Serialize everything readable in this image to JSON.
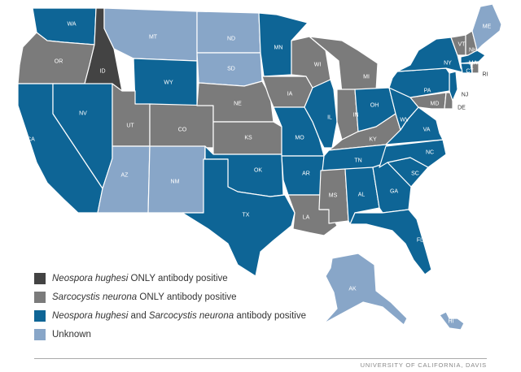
{
  "colors": {
    "neospora_only": "#434343",
    "sarcocystis_only": "#7b7b7b",
    "both": "#0e6596",
    "unknown": "#88a6c8",
    "rule": "#aaaaaa",
    "credit": "#888888"
  },
  "legend": {
    "item1": {
      "part1": "Neospora hughesi",
      "part2": " ONLY antibody positive"
    },
    "item2": {
      "part1": "Sarcocystis neurona",
      "part2": " ONLY antibody positive"
    },
    "item3": {
      "part1": "Neospora hughesi",
      "part2": " and ",
      "part3": "Sarcocystis neurona",
      "part4": " antibody positive"
    },
    "item4": {
      "label": "Unknown"
    }
  },
  "credit": "UNIVERSITY OF CALIFORNIA, DAVIS",
  "states": [
    {
      "abbr": "WA",
      "category": "both"
    },
    {
      "abbr": "OR",
      "category": "sarcocystis_only"
    },
    {
      "abbr": "CA",
      "category": "both"
    },
    {
      "abbr": "ID",
      "category": "neospora_only"
    },
    {
      "abbr": "NV",
      "category": "both"
    },
    {
      "abbr": "MT",
      "category": "unknown"
    },
    {
      "abbr": "WY",
      "category": "both"
    },
    {
      "abbr": "UT",
      "category": "sarcocystis_only"
    },
    {
      "abbr": "AZ",
      "category": "unknown"
    },
    {
      "abbr": "CO",
      "category": "sarcocystis_only"
    },
    {
      "abbr": "NM",
      "category": "unknown"
    },
    {
      "abbr": "ND",
      "category": "unknown"
    },
    {
      "abbr": "SD",
      "category": "unknown"
    },
    {
      "abbr": "NE",
      "category": "sarcocystis_only"
    },
    {
      "abbr": "KS",
      "category": "sarcocystis_only"
    },
    {
      "abbr": "OK",
      "category": "both"
    },
    {
      "abbr": "TX",
      "category": "both"
    },
    {
      "abbr": "MN",
      "category": "both"
    },
    {
      "abbr": "IA",
      "category": "sarcocystis_only"
    },
    {
      "abbr": "MO",
      "category": "both"
    },
    {
      "abbr": "AR",
      "category": "both"
    },
    {
      "abbr": "LA",
      "category": "sarcocystis_only"
    },
    {
      "abbr": "WI",
      "category": "sarcocystis_only"
    },
    {
      "abbr": "IL",
      "category": "both"
    },
    {
      "abbr": "MI",
      "category": "sarcocystis_only"
    },
    {
      "abbr": "IN",
      "category": "sarcocystis_only"
    },
    {
      "abbr": "OH",
      "category": "both"
    },
    {
      "abbr": "KY",
      "category": "sarcocystis_only"
    },
    {
      "abbr": "TN",
      "category": "both"
    },
    {
      "abbr": "MS",
      "category": "sarcocystis_only"
    },
    {
      "abbr": "AL",
      "category": "both"
    },
    {
      "abbr": "GA",
      "category": "both"
    },
    {
      "abbr": "FL",
      "category": "both"
    },
    {
      "abbr": "SC",
      "category": "both"
    },
    {
      "abbr": "NC",
      "category": "both"
    },
    {
      "abbr": "VA",
      "category": "both"
    },
    {
      "abbr": "WV",
      "category": "both"
    },
    {
      "abbr": "MD",
      "category": "sarcocystis_only"
    },
    {
      "abbr": "DE",
      "category": "sarcocystis_only"
    },
    {
      "abbr": "NJ",
      "category": "both"
    },
    {
      "abbr": "PA",
      "category": "both"
    },
    {
      "abbr": "NY",
      "category": "both"
    },
    {
      "abbr": "VT",
      "category": "sarcocystis_only"
    },
    {
      "abbr": "NH",
      "category": "sarcocystis_only"
    },
    {
      "abbr": "ME",
      "category": "unknown"
    },
    {
      "abbr": "MA",
      "category": "both"
    },
    {
      "abbr": "CT",
      "category": "both"
    },
    {
      "abbr": "RI",
      "category": "sarcocystis_only"
    },
    {
      "abbr": "AK",
      "category": "unknown"
    },
    {
      "abbr": "HI",
      "category": "unknown"
    }
  ]
}
